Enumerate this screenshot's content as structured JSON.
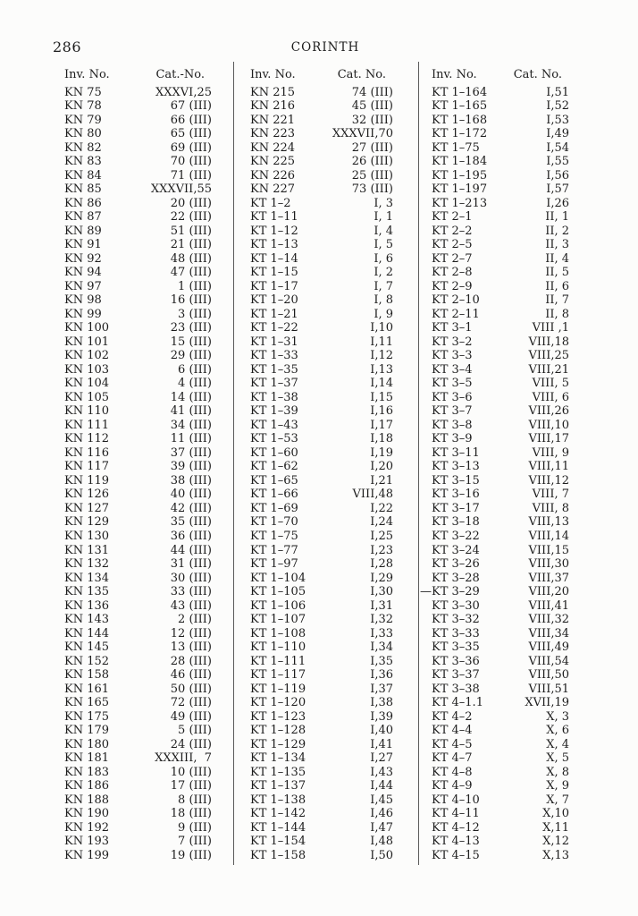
{
  "page": {
    "number": "286",
    "running_head": "CORINTH"
  },
  "colors": {
    "paper": "#fcfcfb",
    "text": "#1d1d1d",
    "rule": "#5a5a5a"
  },
  "table": {
    "groups": [
      {
        "inv_header": "Inv. No.",
        "cat_header": "Cat.-No.",
        "rows": [
          [
            "KN 75",
            "XXXVI,25"
          ],
          [
            "KN 78",
            "67 (III)"
          ],
          [
            "KN 79",
            "66 (III)"
          ],
          [
            "KN 80",
            "65 (III)"
          ],
          [
            "KN 82",
            "69 (III)"
          ],
          [
            "KN 83",
            "70 (III)"
          ],
          [
            "KN 84",
            "71 (III)"
          ],
          [
            "KN 85",
            "XXXVII,55"
          ],
          [
            "KN 86",
            "20 (III)"
          ],
          [
            "KN 87",
            "22 (III)"
          ],
          [
            "KN 89",
            "51 (III)"
          ],
          [
            "KN 91",
            "21 (III)"
          ],
          [
            "KN 92",
            "48 (III)"
          ],
          [
            "KN 94",
            "47 (III)"
          ],
          [
            "KN 97",
            "1 (III)"
          ],
          [
            "KN 98",
            "16 (III)"
          ],
          [
            "KN 99",
            "3 (III)"
          ],
          [
            "KN 100",
            "23 (III)"
          ],
          [
            "KN 101",
            "15 (III)"
          ],
          [
            "KN 102",
            "29 (III)"
          ],
          [
            "KN 103",
            "6 (III)"
          ],
          [
            "KN 104",
            "4 (III)"
          ],
          [
            "KN 105",
            "14 (III)"
          ],
          [
            "KN 110",
            "41 (III)"
          ],
          [
            "KN 111",
            "34 (III)"
          ],
          [
            "KN 112",
            "11 (III)"
          ],
          [
            "KN 116",
            "37 (III)"
          ],
          [
            "KN 117",
            "39 (III)"
          ],
          [
            "KN 119",
            "38 (III)"
          ],
          [
            "KN 126",
            "40 (III)"
          ],
          [
            "KN 127",
            "42 (III)"
          ],
          [
            "KN 129",
            "35 (III)"
          ],
          [
            "KN 130",
            "36 (III)"
          ],
          [
            "KN 131",
            "44 (III)"
          ],
          [
            "KN 132",
            "31 (III)"
          ],
          [
            "KN 134",
            "30 (III)"
          ],
          [
            "KN 135",
            "33 (III)"
          ],
          [
            "KN 136",
            "43 (III)"
          ],
          [
            "KN 143",
            "2 (III)"
          ],
          [
            "KN 144",
            "12 (III)"
          ],
          [
            "KN 145",
            "13 (III)"
          ],
          [
            "KN 152",
            "28 (III)"
          ],
          [
            "KN 158",
            "46 (III)"
          ],
          [
            "KN 161",
            "50 (III)"
          ],
          [
            "KN 165",
            "72 (III)"
          ],
          [
            "KN 175",
            "49 (III)"
          ],
          [
            "KN 179",
            "5 (III)"
          ],
          [
            "KN 180",
            "24 (III)"
          ],
          [
            "KN 181",
            "XXXIII,  7"
          ],
          [
            "KN 183",
            "10 (III)"
          ],
          [
            "KN 186",
            "17 (III)"
          ],
          [
            "KN 188",
            "8 (III)"
          ],
          [
            "KN 190",
            "18 (III)"
          ],
          [
            "KN 192",
            "9 (III)"
          ],
          [
            "KN 193",
            "7 (III)"
          ],
          [
            "KN 199",
            "19 (III)"
          ]
        ]
      },
      {
        "inv_header": "Inv. No.",
        "cat_header": "Cat. No.",
        "rows": [
          [
            "KN 215",
            "74 (III)"
          ],
          [
            "KN 216",
            "45 (III)"
          ],
          [
            "KN 221",
            "32 (III)"
          ],
          [
            "KN 223",
            "XXXVII,70"
          ],
          [
            "KN 224",
            "27 (III)"
          ],
          [
            "KN 225",
            "26 (III)"
          ],
          [
            "KN 226",
            "25 (III)"
          ],
          [
            "KN 227",
            "73 (III)"
          ],
          [
            "KT 1–2",
            "I, 3"
          ],
          [
            "KT 1–11",
            "I, 1"
          ],
          [
            "KT 1–12",
            "I, 4"
          ],
          [
            "KT 1–13",
            "I, 5"
          ],
          [
            "KT 1–14",
            "I, 6"
          ],
          [
            "KT 1–15",
            "I, 2"
          ],
          [
            "KT 1–17",
            "I, 7"
          ],
          [
            "KT 1–20",
            "I, 8"
          ],
          [
            "KT 1–21",
            "I, 9"
          ],
          [
            "KT 1–22",
            "I,10"
          ],
          [
            "KT 1–31",
            "I,11"
          ],
          [
            "KT 1–33",
            "I,12"
          ],
          [
            "KT 1–35",
            "I,13"
          ],
          [
            "KT 1–37",
            "I,14"
          ],
          [
            "KT 1–38",
            "I,15"
          ],
          [
            "KT 1–39",
            "I,16"
          ],
          [
            "KT 1–43",
            "I,17"
          ],
          [
            "KT 1–53",
            "I,18"
          ],
          [
            "KT 1–60",
            "I,19"
          ],
          [
            "KT 1–62",
            "I,20"
          ],
          [
            "KT 1–65",
            "I,21"
          ],
          [
            "KT 1–66",
            "VIII,48"
          ],
          [
            "KT 1–69",
            "I,22"
          ],
          [
            "KT 1–70",
            "I,24"
          ],
          [
            "KT 1–75",
            "I,25"
          ],
          [
            "KT 1–77",
            "I,23"
          ],
          [
            "KT 1–97",
            "I,28"
          ],
          [
            "KT 1–104",
            "I,29"
          ],
          [
            "KT 1–105",
            "I,30"
          ],
          [
            "KT 1–106",
            "I,31"
          ],
          [
            "KT 1–107",
            "I,32"
          ],
          [
            "KT 1–108",
            "I,33"
          ],
          [
            "KT 1–110",
            "I,34"
          ],
          [
            "KT 1–111",
            "I,35"
          ],
          [
            "KT 1–117",
            "I,36"
          ],
          [
            "KT 1–119",
            "I,37"
          ],
          [
            "KT 1–120",
            "I,38"
          ],
          [
            "KT 1–123",
            "I,39"
          ],
          [
            "KT 1–128",
            "I,40"
          ],
          [
            "KT 1–129",
            "I,41"
          ],
          [
            "KT 1–134",
            "I,27"
          ],
          [
            "KT 1–135",
            "I,43"
          ],
          [
            "KT 1–137",
            "I,44"
          ],
          [
            "KT 1–138",
            "I,45"
          ],
          [
            "KT 1–142",
            "I,46"
          ],
          [
            "KT 1–144",
            "I,47"
          ],
          [
            "KT 1–154",
            "I,48"
          ],
          [
            "KT 1–158",
            "I,50"
          ]
        ]
      },
      {
        "inv_header": "Inv. No.",
        "cat_header": "Cat. No.",
        "rows": [
          [
            "KT 1–164",
            "I,51"
          ],
          [
            "KT 1–165",
            "I,52"
          ],
          [
            "KT 1–168",
            "I,53"
          ],
          [
            "KT 1–172",
            "I,49"
          ],
          [
            "KT 1–75",
            "I,54"
          ],
          [
            "KT 1–184",
            "I,55"
          ],
          [
            "KT 1–195",
            "I,56"
          ],
          [
            "KT 1–197",
            "I,57"
          ],
          [
            "KT 1–213",
            "I,26"
          ],
          [
            "KT 2–1",
            "II, 1"
          ],
          [
            "KT 2–2",
            "II, 2"
          ],
          [
            "KT 2–5",
            "II, 3"
          ],
          [
            "KT 2–7",
            "II, 4"
          ],
          [
            "KT 2–8",
            "II, 5"
          ],
          [
            "KT 2–9",
            "II, 6"
          ],
          [
            "KT 2–10",
            "II, 7"
          ],
          [
            "KT 2–11",
            "II, 8"
          ],
          [
            "KT 3–1",
            "VIII ,1"
          ],
          [
            "KT 3–2",
            "VIII,18"
          ],
          [
            "KT 3–3",
            "VIII,25"
          ],
          [
            "KT 3–4",
            "VIII,21"
          ],
          [
            "KT 3–5",
            "VIII, 5"
          ],
          [
            "KT 3–6",
            "VIII, 6"
          ],
          [
            "KT 3–7",
            "VIII,26"
          ],
          [
            "KT 3–8",
            "VIII,10"
          ],
          [
            "KT 3–9",
            "VIII,17"
          ],
          [
            "KT 3–11",
            "VIII, 9"
          ],
          [
            "KT 3–13",
            "VIII,11"
          ],
          [
            "KT 3–15",
            "VIII,12"
          ],
          [
            "KT 3–16",
            "VIII, 7"
          ],
          [
            "KT 3–17",
            "VIII, 8"
          ],
          [
            "KT 3–18",
            "VIII,13"
          ],
          [
            "KT 3–22",
            "VIII,14"
          ],
          [
            "KT 3–24",
            "VIII,15"
          ],
          [
            "KT 3–26",
            "VIII,30"
          ],
          [
            "KT 3–28",
            "VIII,37"
          ],
          [
            "—KT 3–29",
            "VIII,20"
          ],
          [
            "KT 3–30",
            "VIII,41"
          ],
          [
            "KT 3–32",
            "VIII,32"
          ],
          [
            "KT 3–33",
            "VIII,34"
          ],
          [
            "KT 3–35",
            "VIII,49"
          ],
          [
            "KT 3–36",
            "VIII,54"
          ],
          [
            "KT 3–37",
            "VIII,50"
          ],
          [
            "KT 3–38",
            "VIII,51"
          ],
          [
            "KT 4–1.1",
            "XVII,19"
          ],
          [
            "KT 4–2",
            "X, 3"
          ],
          [
            "KT 4–4",
            "X, 6"
          ],
          [
            "KT 4–5",
            "X, 4"
          ],
          [
            "KT 4–7",
            "X, 5"
          ],
          [
            "KT 4–8",
            "X, 8"
          ],
          [
            "KT 4–9",
            "X, 9"
          ],
          [
            "KT 4–10",
            "X, 7"
          ],
          [
            "KT 4–11",
            "X,10"
          ],
          [
            "KT 4–12",
            "X,11"
          ],
          [
            "KT 4–13",
            "X,12"
          ],
          [
            "KT 4–15",
            "X,13"
          ]
        ]
      }
    ]
  }
}
